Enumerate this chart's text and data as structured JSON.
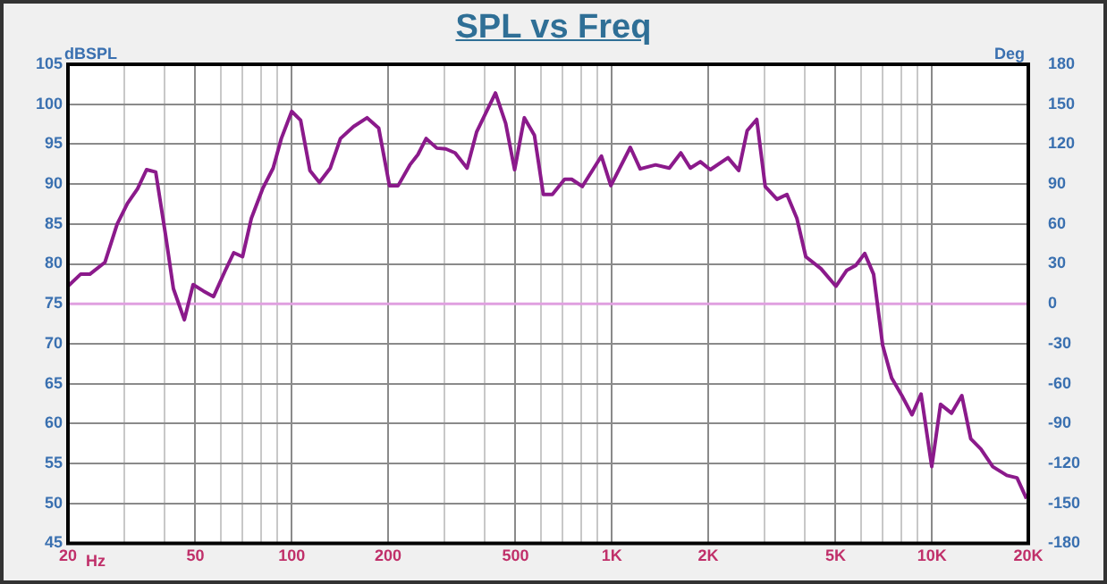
{
  "chart_data": {
    "type": "line",
    "title": "SPL vs Freq",
    "xlabel": "Hz",
    "ylabel": "dBSPL",
    "y2label": "Deg",
    "x": [
      20,
      21.9,
      23.4,
      26.1,
      28.5,
      30.7,
      33,
      35.2,
      37.6,
      40.4,
      42.7,
      46.2,
      49.2,
      53,
      57,
      61.9,
      65.9,
      70.2,
      74.8,
      81.1,
      87.5,
      92.8,
      100,
      106.6,
      114,
      122,
      132,
      142,
      156,
      172,
      187,
      202,
      215,
      234,
      248,
      263,
      284,
      303,
      324,
      353,
      378,
      433,
      466,
      497,
      533,
      573,
      611,
      652,
      712,
      749,
      809,
      928,
      993,
      1142,
      1226,
      1370,
      1512,
      1643,
      1759,
      1890,
      2031,
      2306,
      2492,
      2648,
      2836,
      3014,
      3281,
      3523,
      3785,
      4036,
      4500,
      5012,
      5420,
      5780,
      6166,
      6572,
      7016,
      7483,
      8054,
      8665,
      9246,
      9986,
      10640,
      11508,
      12396,
      13220,
      14220,
      15490,
      17140,
      18440,
      19740
    ],
    "series": [
      {
        "color": "#8b1a8b",
        "values": [
          77.2,
          78.7,
          78.7,
          80.2,
          85,
          87.6,
          89.4,
          91.8,
          91.5,
          83.5,
          76.9,
          73,
          77.4,
          76.6,
          75.9,
          79.1,
          81.4,
          80.9,
          85.7,
          89.4,
          92,
          95.7,
          99.1,
          98,
          91.7,
          90.2,
          92,
          95.7,
          97.2,
          98.3,
          97,
          89.8,
          89.8,
          92.4,
          93.7,
          95.7,
          94.5,
          94.4,
          93.9,
          92,
          96.5,
          101.4,
          97.6,
          91.8,
          98.3,
          96.1,
          88.7,
          88.7,
          90.6,
          90.6,
          89.7,
          93.5,
          89.8,
          94.6,
          91.9,
          92.4,
          92,
          93.9,
          92,
          92.8,
          91.8,
          93.3,
          91.7,
          96.7,
          98.1,
          89.7,
          88.1,
          88.7,
          85.7,
          80.9,
          79.4,
          77.2,
          79.2,
          79.8,
          81.3,
          78.7,
          69.8,
          65.7,
          63.5,
          61.1,
          63.7,
          54.6,
          62.4,
          61.3,
          63.5,
          58.1,
          56.8,
          54.6,
          53.5,
          53.2,
          50.6
        ]
      }
    ],
    "log": "x",
    "xlim": [
      20,
      20000
    ],
    "xticks": [
      20,
      {
        "value": 30,
        "label": null
      },
      {
        "value": 40,
        "label": null
      },
      50,
      {
        "value": 60,
        "label": null
      },
      {
        "value": 70,
        "label": null
      },
      {
        "value": 80,
        "label": null
      },
      {
        "value": 90,
        "label": null
      },
      100,
      200,
      {
        "value": 300,
        "label": null
      },
      {
        "value": 400,
        "label": null
      },
      500,
      {
        "value": 600,
        "label": null
      },
      {
        "value": 700,
        "label": null
      },
      {
        "value": 800,
        "label": null
      },
      {
        "value": 900,
        "label": null
      },
      {
        "value": 1000,
        "label": "1K"
      },
      {
        "value": 2000,
        "label": "2K"
      },
      {
        "value": 3000,
        "label": null
      },
      {
        "value": 4000,
        "label": null
      },
      {
        "value": 5000,
        "label": "5K"
      },
      {
        "value": 6000,
        "label": null
      },
      {
        "value": 7000,
        "label": null
      },
      {
        "value": 8000,
        "label": null
      },
      {
        "value": 9000,
        "label": null
      },
      {
        "value": 10000,
        "label": "10K"
      },
      {
        "value": 20000,
        "label": "20K"
      }
    ],
    "ylim": [
      45,
      105
    ],
    "yticks": [
      45,
      50,
      55,
      60,
      65,
      70,
      75,
      80,
      85,
      90,
      95,
      100,
      105
    ],
    "y2lim": [
      -180,
      180
    ],
    "y2ticks": [
      -180,
      -150,
      -120,
      -90,
      -60,
      -30,
      0,
      30,
      60,
      90,
      120,
      150,
      180
    ],
    "ref_lines": [
      {
        "axis": "y",
        "value": 75,
        "color": "#e0a0e0"
      }
    ],
    "grid": true,
    "legend": false,
    "marker": "none",
    "line_style": "solid"
  }
}
